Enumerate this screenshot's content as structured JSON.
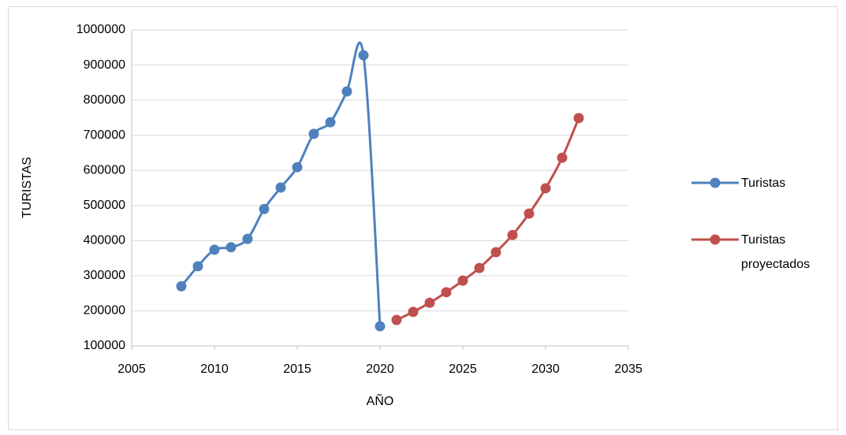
{
  "chart_data": {
    "type": "line",
    "x_label": "AÑO",
    "y_label": "TURISTAS",
    "xlim": [
      2005,
      2035
    ],
    "xticks": [
      2005,
      2010,
      2015,
      2020,
      2025,
      2030,
      2035
    ],
    "ylim": [
      100000,
      1000000
    ],
    "yticks": [
      100000,
      200000,
      300000,
      400000,
      500000,
      600000,
      700000,
      800000,
      900000,
      1000000
    ],
    "grid": true,
    "smooth": true,
    "legend": "right",
    "series": [
      {
        "name": "Turistas",
        "color": "#4f81bd",
        "x": [
          2008,
          2009,
          2010,
          2011,
          2012,
          2013,
          2014,
          2015,
          2016,
          2017,
          2018,
          2019,
          2020
        ],
        "values": [
          270000,
          327000,
          374000,
          381000,
          405000,
          490000,
          551000,
          609000,
          704000,
          737000,
          825000,
          928000,
          156000
        ]
      },
      {
        "name": "Turistas proyectados",
        "color": "#c0504d",
        "x": [
          2021,
          2022,
          2023,
          2024,
          2025,
          2026,
          2027,
          2028,
          2029,
          2030,
          2031,
          2032
        ],
        "values": [
          174000,
          197000,
          223000,
          253000,
          286000,
          322000,
          367000,
          416000,
          477000,
          549000,
          636000,
          749000
        ]
      }
    ]
  }
}
